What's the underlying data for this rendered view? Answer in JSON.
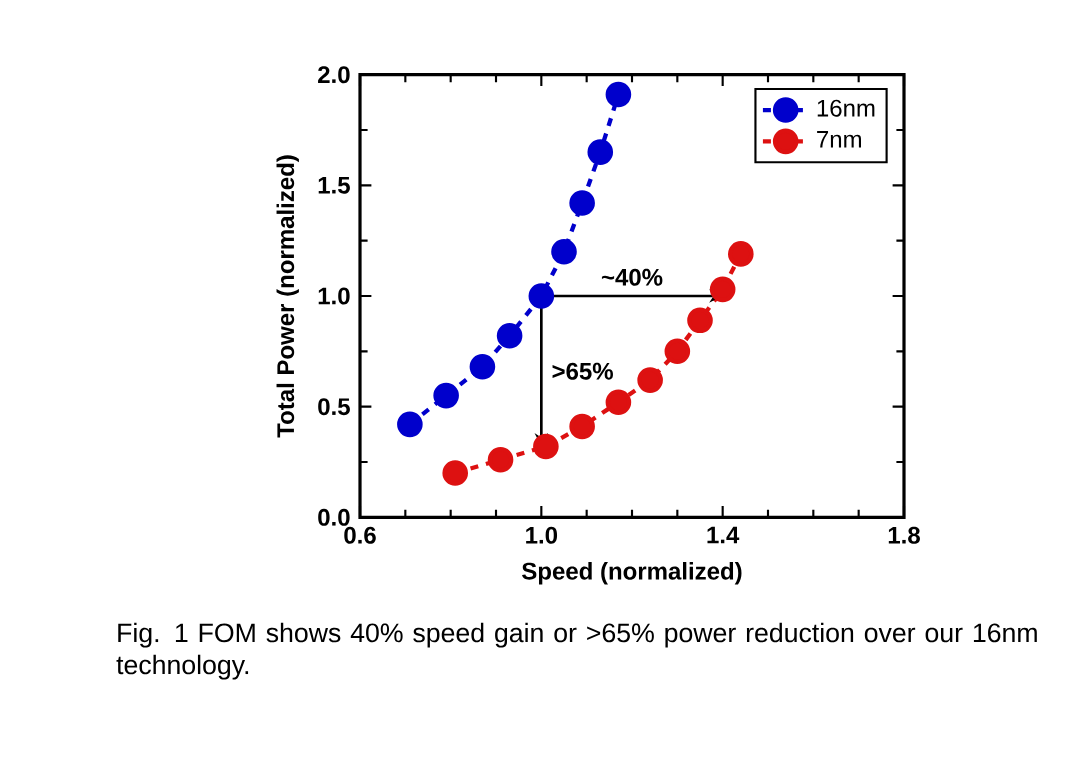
{
  "chart_data": {
    "type": "line",
    "xlabel": "Speed (normalized)",
    "ylabel": "Total Power (normalized)",
    "xlim": [
      0.6,
      1.8
    ],
    "ylim": [
      0,
      2
    ],
    "xticks": [
      0.6,
      {
        "value": 1,
        "label": "1.0"
      },
      1.4,
      1.8
    ],
    "yticks": [
      {
        "value": 0,
        "label": "0.0"
      },
      0.5,
      {
        "value": 1,
        "label": "1.0"
      },
      1.5,
      {
        "value": 2,
        "label": "2.0"
      }
    ],
    "series": [
      {
        "name": "16nm",
        "color": "#0000cc",
        "x": [
          0.71,
          0.79,
          0.87,
          0.93,
          1.0,
          1.05,
          1.09,
          1.13,
          1.17
        ],
        "values": [
          0.42,
          0.55,
          0.68,
          0.82,
          1.0,
          1.2,
          1.42,
          1.65,
          1.91
        ]
      },
      {
        "name": "7nm",
        "color": "#dd1111",
        "x": [
          0.81,
          0.91,
          1.01,
          1.09,
          1.17,
          1.24,
          1.3,
          1.35,
          1.4,
          1.44
        ],
        "values": [
          0.2,
          0.26,
          0.32,
          0.41,
          0.52,
          0.62,
          0.75,
          0.89,
          1.03,
          1.19
        ]
      }
    ],
    "marker": "circle",
    "line_style": "dashed",
    "legend": "top right",
    "grid": false,
    "annotations": [
      "~40%",
      ">65%",
      "Fig. 1 FOM shows 40% speed gain or >65% power reduction over our 16nm technology."
    ]
  }
}
